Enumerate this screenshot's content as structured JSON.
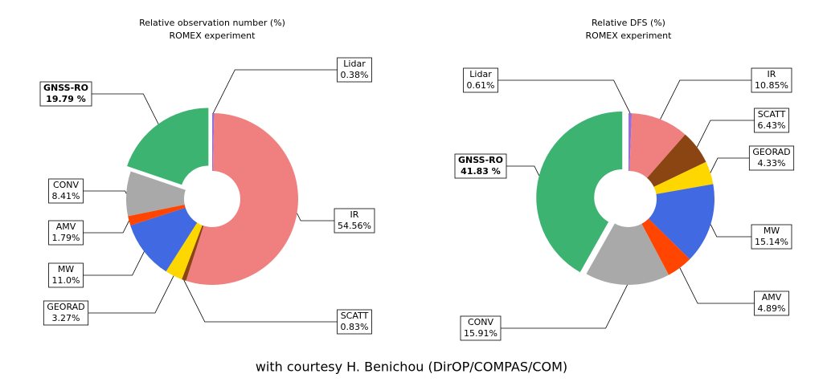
{
  "chart_data": [
    {
      "type": "pie",
      "title": "Relative observation number (%)",
      "subtitle": "ROMEX experiment",
      "categories": [
        "Lidar",
        "IR",
        "SCATT",
        "GEORAD",
        "MW",
        "AMV",
        "CONV",
        "GNSS-RO"
      ],
      "values": [
        0.38,
        54.56,
        0.83,
        3.27,
        11.0,
        1.79,
        8.41,
        19.79
      ],
      "value_labels": [
        "0.38%",
        "54.56%",
        "0.83%",
        "3.27%",
        "11.0%",
        "1.79%",
        "8.41%",
        "19.79 %"
      ],
      "colors": [
        "#9370db",
        "#f08080",
        "#8b4513",
        "#ffd700",
        "#4169e1",
        "#ff4500",
        "#a9a9a9",
        "#3cb371"
      ],
      "explode": [
        false,
        false,
        false,
        false,
        false,
        false,
        false,
        true
      ]
    },
    {
      "type": "pie",
      "title": "Relative DFS (%)",
      "subtitle": "ROMEX experiment",
      "categories": [
        "Lidar",
        "IR",
        "SCATT",
        "GEORAD",
        "MW",
        "AMV",
        "CONV",
        "GNSS-RO"
      ],
      "values": [
        0.61,
        10.85,
        6.43,
        4.33,
        15.14,
        4.89,
        15.91,
        41.83
      ],
      "value_labels": [
        "0.61%",
        "10.85%",
        "6.43%",
        "4.33%",
        "15.14%",
        "4.89%",
        "15.91%",
        "41.83 %"
      ],
      "colors": [
        "#9370db",
        "#f08080",
        "#8b4513",
        "#ffd700",
        "#4169e1",
        "#ff4500",
        "#a9a9a9",
        "#3cb371"
      ],
      "explode": [
        false,
        false,
        false,
        false,
        false,
        false,
        false,
        true
      ]
    }
  ],
  "caption": "with courtesy H. Benichou (DirOP/COMPAS/COM)"
}
